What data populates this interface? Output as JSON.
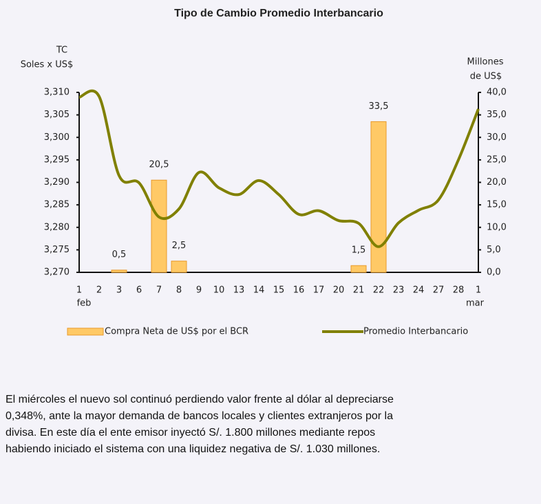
{
  "chart_data": {
    "type": "bar-line",
    "title": "Tipo de Cambio Promedio Interbancario",
    "ylabel": [
      "TC",
      "Soles x US$"
    ],
    "y2label": [
      "Millones",
      "de US$"
    ],
    "categories": [
      "1",
      "2",
      "3",
      "6",
      "7",
      "8",
      "9",
      "10",
      "13",
      "14",
      "15",
      "16",
      "17",
      "20",
      "21",
      "22",
      "23",
      "24",
      "27",
      "28",
      "1"
    ],
    "month_labels": [
      "feb",
      "mar"
    ],
    "series": [
      {
        "name": "Compra Neta de US$ por el BCR",
        "type": "bar",
        "axis": "y2",
        "color": "#ffc966",
        "edge": "#e89a2c",
        "values": [
          null,
          null,
          0.5,
          null,
          20.5,
          2.5,
          null,
          null,
          null,
          null,
          null,
          null,
          null,
          null,
          1.5,
          33.5,
          null,
          null,
          null,
          null,
          null
        ],
        "value_labels": [
          null,
          null,
          "0,5",
          null,
          "20,5",
          "2,5",
          null,
          null,
          null,
          null,
          null,
          null,
          null,
          null,
          "1,5",
          "33,5",
          null,
          null,
          null,
          null,
          null
        ]
      },
      {
        "name": "Promedio Interbancario",
        "type": "line",
        "color": "#808000",
        "values": [
          3308.9,
          3309.1,
          3291.5,
          3289.9,
          3282.3,
          3284.1,
          3292.2,
          3288.8,
          3287.3,
          3290.4,
          3287.3,
          3282.9,
          3283.7,
          3281.5,
          3280.9,
          3275.7,
          3281.0,
          3283.8,
          3286.1,
          3295.0,
          3306.3
        ]
      }
    ],
    "ylim": [
      3270,
      3310
    ],
    "yticks": [
      {
        "value": 3270,
        "label": "3,270"
      },
      {
        "value": 3275,
        "label": "3,275"
      },
      {
        "value": 3280,
        "label": "3,280"
      },
      {
        "value": 3285,
        "label": "3,285"
      },
      {
        "value": 3290,
        "label": "3,290"
      },
      {
        "value": 3295,
        "label": "3,295"
      },
      {
        "value": 3300,
        "label": "3,300"
      },
      {
        "value": 3305,
        "label": "3,305"
      },
      {
        "value": 3310,
        "label": "3,310"
      }
    ],
    "y2lim": [
      0,
      40
    ],
    "y2ticks": [
      {
        "value": 0,
        "label": "0,0"
      },
      {
        "value": 5,
        "label": "5,0"
      },
      {
        "value": 10,
        "label": "10,0"
      },
      {
        "value": 15,
        "label": "15,0"
      },
      {
        "value": 20,
        "label": "20,0"
      },
      {
        "value": 25,
        "label": "25,0"
      },
      {
        "value": 30,
        "label": "30,0"
      },
      {
        "value": 35,
        "label": "35,0"
      },
      {
        "value": 40,
        "label": "40,0"
      }
    ],
    "legend": "bottom"
  },
  "paragraph": [
    "El miércoles el nuevo sol continuó perdiendo valor frente al dólar al depreciarse",
    "0,348%, ante la mayor demanda de bancos locales y clientes extranjeros por la",
    "divisa. En este día el ente emisor inyectó S/. 1.800 millones mediante repos",
    "habiendo iniciado el sistema con una liquidez negativa de S/. 1.030 millones."
  ]
}
